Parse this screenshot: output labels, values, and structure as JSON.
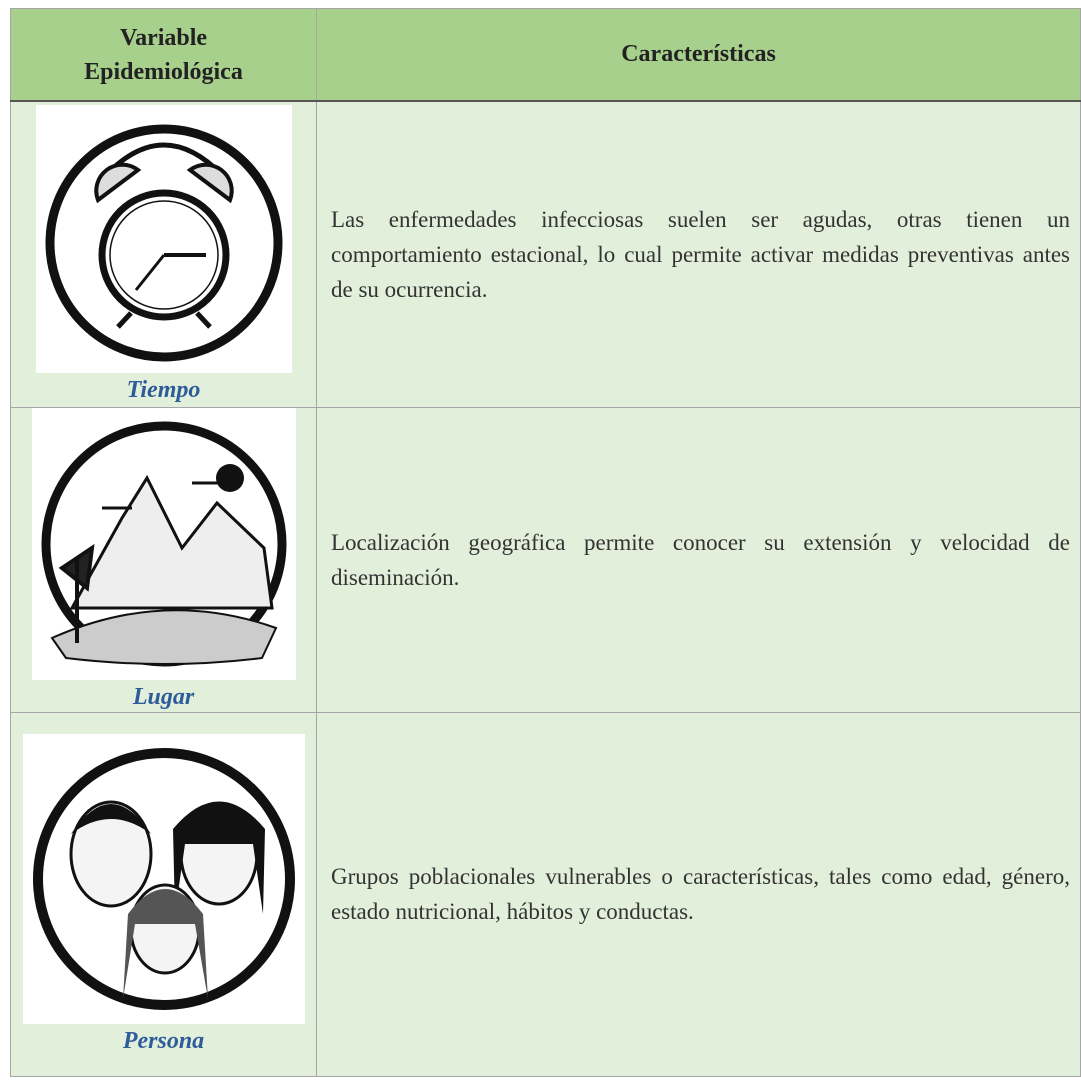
{
  "table": {
    "header": [
      "Variable Epidemiológica",
      "Características"
    ],
    "rows": [
      [
        "Tiempo",
        "Las enfermedades infecciosas suelen ser agudas, otras tienen un comportamiento estacional, lo cual permite activar medidas preventivas antes de su ocurrencia."
      ],
      [
        "Lugar",
        "Localización geográfica permite conocer su extensión y velocidad de diseminación."
      ],
      [
        "Persona",
        "Grupos poblacionales vulnerables o características, tales como edad, género, estado nutricional, hábitos y conductas."
      ]
    ]
  }
}
